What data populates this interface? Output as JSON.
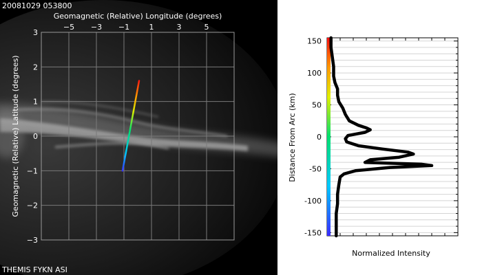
{
  "header": {
    "timestamp": "20081029 053800"
  },
  "footer": {
    "caption": "THEMIS FYKN ASI"
  },
  "sky_map": {
    "top_axis_label": "Geomagnetic (Relative) Longitude (degrees)",
    "left_axis_label": "Geomagnetic (Relative) Latitude (degrees)",
    "x_ticks": [
      "−5",
      "−3",
      "−1",
      "1",
      "3",
      "5"
    ],
    "y_ticks": [
      "3",
      "2",
      "1",
      "0",
      "−1",
      "−2",
      "−3"
    ],
    "xlim": [
      -7,
      7
    ],
    "ylim": [
      -3,
      3
    ],
    "scan_line": {
      "start": [
        -1.1,
        -1.0
      ],
      "end": [
        0.1,
        1.6
      ]
    },
    "colors": {
      "background": "#000000",
      "grid": "#7a7a7a",
      "text": "#ffffff"
    }
  },
  "chart_data": {
    "type": "line",
    "xlabel": "Normalized Intensity",
    "ylabel": "Distance From Arc (km)",
    "ylim": [
      -155,
      155
    ],
    "y_ticks": [
      150,
      100,
      50,
      0,
      -50,
      -100,
      -150
    ],
    "xlim": [
      0,
      1
    ],
    "grid": true,
    "line_color": "#000000",
    "points": [
      {
        "y": 155,
        "x": 0.03
      },
      {
        "y": 140,
        "x": 0.03
      },
      {
        "y": 125,
        "x": 0.04
      },
      {
        "y": 110,
        "x": 0.05
      },
      {
        "y": 95,
        "x": 0.05
      },
      {
        "y": 85,
        "x": 0.06
      },
      {
        "y": 75,
        "x": 0.08
      },
      {
        "y": 65,
        "x": 0.08
      },
      {
        "y": 55,
        "x": 0.09
      },
      {
        "y": 45,
        "x": 0.12
      },
      {
        "y": 35,
        "x": 0.14
      },
      {
        "y": 25,
        "x": 0.17
      },
      {
        "y": 18,
        "x": 0.24
      },
      {
        "y": 14,
        "x": 0.3
      },
      {
        "y": 11,
        "x": 0.33
      },
      {
        "y": 7,
        "x": 0.29
      },
      {
        "y": 2,
        "x": 0.16
      },
      {
        "y": -3,
        "x": 0.14
      },
      {
        "y": -8,
        "x": 0.15
      },
      {
        "y": -14,
        "x": 0.24
      },
      {
        "y": -19,
        "x": 0.42
      },
      {
        "y": -24,
        "x": 0.62
      },
      {
        "y": -27,
        "x": 0.66
      },
      {
        "y": -32,
        "x": 0.55
      },
      {
        "y": -36,
        "x": 0.33
      },
      {
        "y": -40,
        "x": 0.29
      },
      {
        "y": -43,
        "x": 0.72
      },
      {
        "y": -45,
        "x": 0.8
      },
      {
        "y": -48,
        "x": 0.48
      },
      {
        "y": -53,
        "x": 0.22
      },
      {
        "y": -58,
        "x": 0.13
      },
      {
        "y": -63,
        "x": 0.1
      },
      {
        "y": -75,
        "x": 0.09
      },
      {
        "y": -90,
        "x": 0.08
      },
      {
        "y": -105,
        "x": 0.08
      },
      {
        "y": -120,
        "x": 0.07
      },
      {
        "y": -135,
        "x": 0.07
      },
      {
        "y": -155,
        "x": 0.07
      }
    ]
  }
}
